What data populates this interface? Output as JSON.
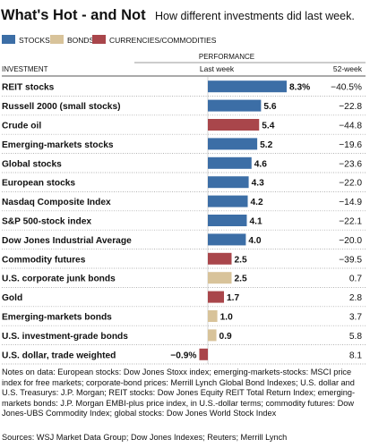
{
  "chart_data": {
    "type": "bar",
    "title": "What's Hot - and Not",
    "subtitle": "How different investments did last week.",
    "legend": [
      {
        "name": "STOCKS",
        "color": "#3c6ea6"
      },
      {
        "name": "BONDS",
        "color": "#d8c39a"
      },
      {
        "name": "CURRENCIES/COMMODITIES",
        "color": "#a9464b"
      }
    ],
    "column_header": "PERFORMANCE",
    "investment_label": "INVESTMENT",
    "last_week_label": "Last week",
    "week52_label": "52-week",
    "rows": [
      {
        "name": "REIT stocks",
        "last_week": 8.3,
        "last_week_label": "8.3%",
        "week52": "−40.5%",
        "group": "stocks"
      },
      {
        "name": "Russell 2000 (small stocks)",
        "last_week": 5.6,
        "last_week_label": "5.6",
        "week52": "−22.8",
        "group": "stocks"
      },
      {
        "name": "Crude oil",
        "last_week": 5.4,
        "last_week_label": "5.4",
        "week52": "−44.8",
        "group": "commodities"
      },
      {
        "name": "Emerging-markets stocks",
        "last_week": 5.2,
        "last_week_label": "5.2",
        "week52": "−19.6",
        "group": "stocks"
      },
      {
        "name": "Global stocks",
        "last_week": 4.6,
        "last_week_label": "4.6",
        "week52": "−23.6",
        "group": "stocks"
      },
      {
        "name": "European stocks",
        "last_week": 4.3,
        "last_week_label": "4.3",
        "week52": "−22.0",
        "group": "stocks"
      },
      {
        "name": "Nasdaq Composite Index",
        "last_week": 4.2,
        "last_week_label": "4.2",
        "week52": "−14.9",
        "group": "stocks"
      },
      {
        "name": "S&P 500-stock index",
        "last_week": 4.1,
        "last_week_label": "4.1",
        "week52": "−22.1",
        "group": "stocks"
      },
      {
        "name": "Dow Jones Industrial Average",
        "last_week": 4.0,
        "last_week_label": "4.0",
        "week52": "−20.0",
        "group": "stocks"
      },
      {
        "name": "Commodity futures",
        "last_week": 2.5,
        "last_week_label": "2.5",
        "week52": "−39.5",
        "group": "commodities"
      },
      {
        "name": "U.S. corporate junk bonds",
        "last_week": 2.5,
        "last_week_label": "2.5",
        "week52": "0.7",
        "group": "bonds"
      },
      {
        "name": "Gold",
        "last_week": 1.7,
        "last_week_label": "1.7",
        "week52": "2.8",
        "group": "commodities"
      },
      {
        "name": "Emerging-markets bonds",
        "last_week": 1.0,
        "last_week_label": "1.0",
        "week52": "3.7",
        "group": "bonds"
      },
      {
        "name": "U.S. investment-grade bonds",
        "last_week": 0.9,
        "last_week_label": "0.9",
        "week52": "5.8",
        "group": "bonds"
      },
      {
        "name": "U.S. dollar, trade weighted",
        "last_week": -0.9,
        "last_week_label": "−0.9%",
        "week52": "8.1",
        "group": "commodities"
      }
    ]
  },
  "colors": {
    "stocks": "#3c6ea6",
    "bonds": "#d8c39a",
    "commodities": "#a9464b"
  },
  "notes": "Notes on data: European stocks: Dow Jones Stoxx index; emerging-markets-stocks: MSCI price index for free markets; corporate-bond prices: Merrill Lynch Global Bond Indexes; U.S. dollar and U.S. Treasurys: J.P. Morgan; REIT stocks: Dow Jones Equity REIT Total Return Index; emerging-markets bonds: J.P. Morgan EMBI-plus price index, in U.S.-dollar terms; commodity futures: Dow Jones-UBS Commodity Index; global stocks: Dow Jones World Stock Index",
  "sources": "Sources: WSJ Market Data Group; Dow Jones Indexes; Reuters; Merrill Lynch"
}
